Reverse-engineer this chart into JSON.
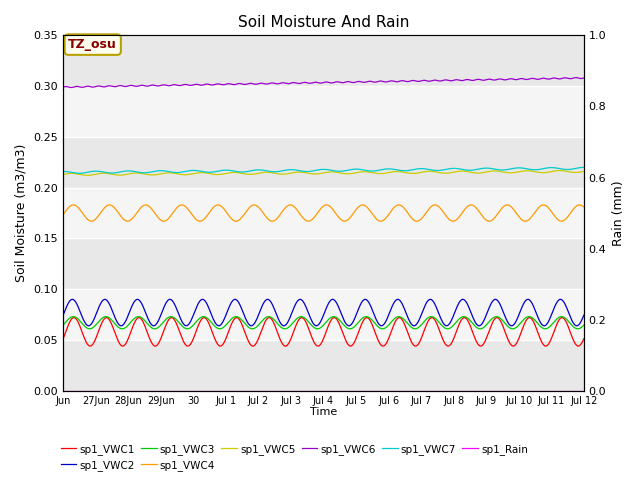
{
  "title": "Soil Moisture And Rain",
  "xlabel": "Time",
  "ylabel_left": "Soil Moisture (m3/m3)",
  "ylabel_right": "Rain (mm)",
  "ylim_left": [
    0.0,
    0.35
  ],
  "ylim_right": [
    0.0,
    1.0
  ],
  "n_points": 1000,
  "annotation_text": "TZ_osu",
  "annotation_bg": "#fffff0",
  "annotation_border": "#b8a000",
  "colors": {
    "VWC1": "#ff0000",
    "VWC2": "#0000cc",
    "VWC3": "#00cc00",
    "VWC4": "#ff9900",
    "VWC5": "#cccc00",
    "VWC6": "#9900cc",
    "VWC7": "#00cccc",
    "Rain": "#ff00ff"
  },
  "legend_labels": [
    "sp1_VWC1",
    "sp1_VWC2",
    "sp1_VWC3",
    "sp1_VWC4",
    "sp1_VWC5",
    "sp1_VWC6",
    "sp1_VWC7",
    "sp1_Rain"
  ],
  "bg_light": "#f0f0f0",
  "bg_dark": "#e0e0e0",
  "grid_color": "#ffffff",
  "x_tick_labels": [
    "Jun",
    "27Jun",
    "28Jun",
    "29Jun",
    "30",
    "Jul 1",
    "Jul 2",
    "Jul 3",
    "Jul 4",
    "Jul 5",
    "Jul 6",
    "Jul 7",
    "Jul 8",
    "Jul 9",
    "Jul 10",
    "Jul 11",
    "Jul 12"
  ],
  "x_tick_positions": [
    0,
    1,
    2,
    3,
    4,
    5,
    6,
    7,
    8,
    9,
    10,
    11,
    12,
    13,
    14,
    15,
    16
  ]
}
